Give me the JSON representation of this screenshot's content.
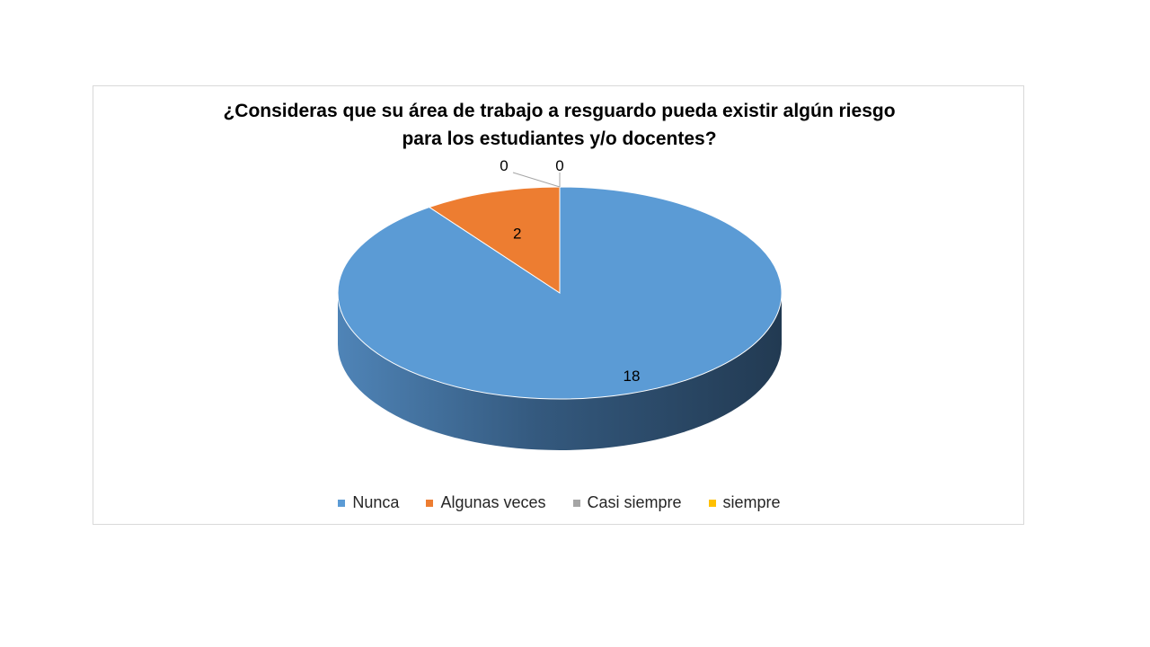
{
  "chart_data": {
    "type": "pie",
    "title_lines": [
      "¿Consideras que su área de trabajo a resguardo pueda existir algún riesgo",
      "para los estudiantes y/o docentes?"
    ],
    "categories": [
      "Nunca",
      "Algunas veces",
      "Casi siempre",
      "siempre"
    ],
    "values": [
      18,
      2,
      0,
      0
    ],
    "data_labels": [
      "18",
      "2",
      "0",
      "0"
    ],
    "colors": [
      "#5b9bd5",
      "#ed7d31",
      "#a5a5a5",
      "#ffc000"
    ],
    "legend_position": "bottom",
    "style": "3d"
  }
}
